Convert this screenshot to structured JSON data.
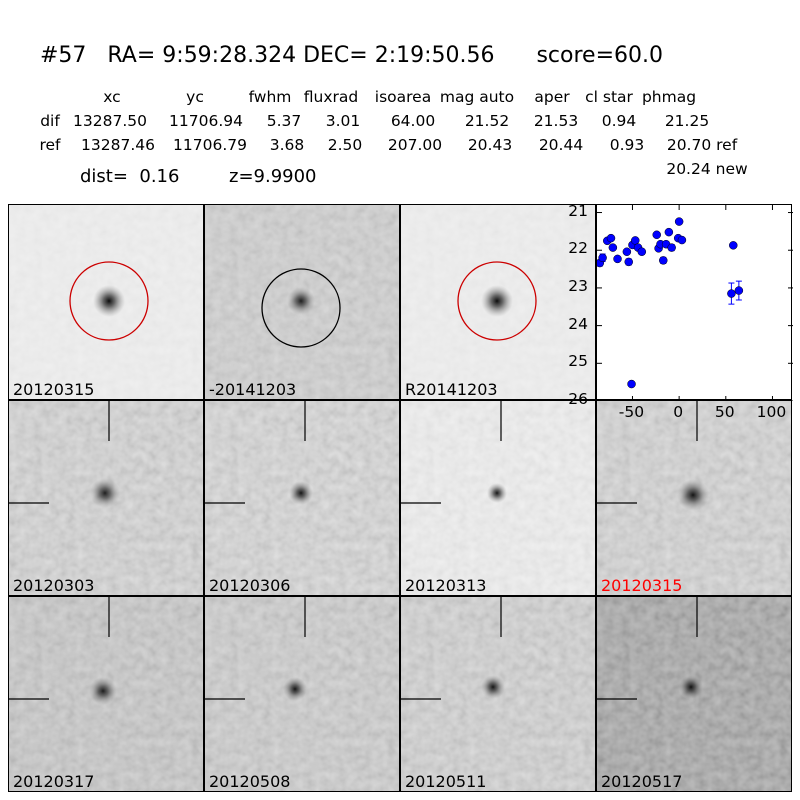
{
  "title": "#57   RA= 9:59:28.324 DEC= 2:19:50.56      score=60.0",
  "table": {
    "columns": [
      "xc",
      "yc",
      "fwhm",
      "fluxrad",
      "isoarea",
      "mag auto",
      "aper",
      "cl star",
      "phmag"
    ],
    "dif": {
      "label": "dif",
      "values": [
        "13287.50",
        "11706.94",
        "5.37",
        "3.01",
        "64.00",
        "21.52",
        "21.53",
        "0.94",
        "21.25"
      ]
    },
    "ref": {
      "label": "ref",
      "values": [
        "13287.46",
        "11706.79",
        "3.68",
        "2.50",
        "207.00",
        "20.43",
        "20.44",
        "0.93",
        "20.70 ref"
      ]
    },
    "new_phmag": "20.24 new",
    "dist": "dist=  0.16",
    "z": "z=9.9900"
  },
  "stamps": [
    {
      "label": "20120315",
      "circle": "#cc0000"
    },
    {
      "label": "-20141203",
      "circle": "#000000"
    },
    {
      "label": "R20141203",
      "circle": "#cc0000"
    },
    {
      "label": "20120303"
    },
    {
      "label": "20120306"
    },
    {
      "label": "20120313"
    },
    {
      "label": "20120315",
      "color": "#ff0000"
    },
    {
      "label": "20120317"
    },
    {
      "label": "20120508"
    },
    {
      "label": "20120511"
    },
    {
      "label": "20120517"
    }
  ],
  "chart_data": {
    "type": "scatter",
    "xlim": [
      -88,
      122
    ],
    "ylim": [
      26,
      20.8
    ],
    "y_inverted": true,
    "xticks": [
      "-50",
      "0",
      "50",
      "100"
    ],
    "xtick_values": [
      -50,
      0,
      50,
      100
    ],
    "yticks": [
      "21",
      "22",
      "23",
      "24",
      "25",
      "26"
    ],
    "ytick_values": [
      21,
      22,
      23,
      24,
      25,
      26
    ],
    "marker_color": "#0000ff",
    "points": [
      {
        "x": -85,
        "y": 22.34,
        "err": 0.08
      },
      {
        "x": -82,
        "y": 22.2,
        "err": 0.1
      },
      {
        "x": -77,
        "y": 21.75,
        "err": 0.05
      },
      {
        "x": -73,
        "y": 21.68,
        "err": 0.05
      },
      {
        "x": -71,
        "y": 21.93,
        "err": 0.05
      },
      {
        "x": -66,
        "y": 22.23,
        "err": 0.05
      },
      {
        "x": -56,
        "y": 22.04,
        "err": 0.06
      },
      {
        "x": -54,
        "y": 22.31,
        "err": 0.08
      },
      {
        "x": -51,
        "y": 25.55,
        "err": 0.06
      },
      {
        "x": -50,
        "y": 21.86,
        "err": 0.05
      },
      {
        "x": -47,
        "y": 21.74,
        "err": 0.05
      },
      {
        "x": -44,
        "y": 21.93,
        "err": 0.05
      },
      {
        "x": -40,
        "y": 22.04,
        "err": 0.07
      },
      {
        "x": -24,
        "y": 21.59,
        "err": 0.05
      },
      {
        "x": -22,
        "y": 21.95,
        "err": 0.05
      },
      {
        "x": -20,
        "y": 21.84,
        "err": 0.05
      },
      {
        "x": -17,
        "y": 22.27,
        "err": 0.08
      },
      {
        "x": -14,
        "y": 21.84,
        "err": 0.06
      },
      {
        "x": -11,
        "y": 21.52,
        "err": 0.05
      },
      {
        "x": -8,
        "y": 21.93,
        "err": 0.08
      },
      {
        "x": 0,
        "y": 21.24,
        "err": 0.05
      },
      {
        "x": -1,
        "y": 21.68,
        "err": 0.05
      },
      {
        "x": 3,
        "y": 21.73,
        "err": 0.05
      },
      {
        "x": 58,
        "y": 21.87,
        "err": 0.06
      },
      {
        "x": 56,
        "y": 23.15,
        "err": 0.28
      },
      {
        "x": 64,
        "y": 23.07,
        "err": 0.25
      }
    ]
  }
}
